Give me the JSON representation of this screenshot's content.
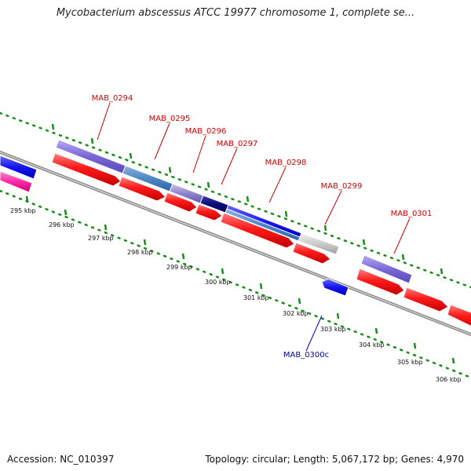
{
  "title": "Mycobacterium abscessus ATCC 19977 chromosome 1, complete se...",
  "footer": {
    "accession": "Accession: NC_010397",
    "summary": "Topology: circular; Length: 5,067,172 bp; Genes: 4,970"
  },
  "scale_labels": [
    "295 kbp",
    "296 kbp",
    "297 kbp",
    "298 kbp",
    "299 kbp",
    "300 kbp",
    "301 kbp",
    "302 kbp",
    "303 kbp",
    "304 kbp",
    "305 kbp",
    "306 kbp"
  ],
  "gene_labels": [
    "MAB_0294",
    "MAB_0295",
    "MAB_0296",
    "MAB_0297",
    "MAB_0298",
    "MAB_0299",
    "MAB_0301",
    "MAB_0300c"
  ],
  "colors": {
    "cds": "#ff0000",
    "gene_label": "#d40000",
    "reverse_gene": "#0000ee",
    "reverse_label": "#0000aa",
    "backbone": "#808080",
    "ruler": "#1a8c1a"
  }
}
